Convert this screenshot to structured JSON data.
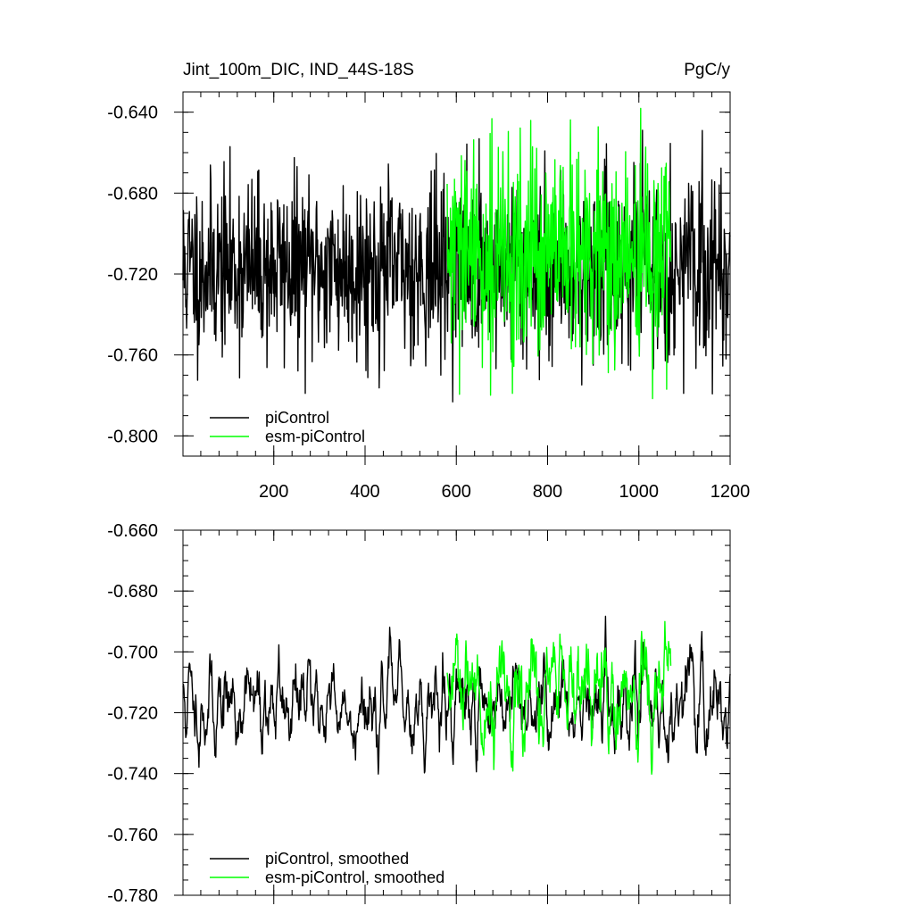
{
  "chart_data": [
    {
      "type": "line",
      "title_left": "Jint_100m_DIC, IND_44S-18S",
      "title_right": "PgC/y",
      "xlim": [
        1,
        1200
      ],
      "ylim": [
        -0.81,
        -0.63
      ],
      "x_ticks": [
        200,
        400,
        600,
        800,
        1000,
        1200
      ],
      "x_tick_labels": [
        "200",
        "400",
        "600",
        "800",
        "1000",
        "1200"
      ],
      "y_ticks": [
        -0.64,
        -0.68,
        -0.72,
        -0.76,
        -0.8
      ],
      "y_tick_labels": [
        "-0.640",
        "-0.680",
        "-0.720",
        "-0.760",
        "-0.800"
      ],
      "legend_position": "bottom-left",
      "series": [
        {
          "name": "piControl",
          "color": "#000000",
          "x_range": [
            1,
            1200
          ],
          "mean": -0.717,
          "noise": 0.022,
          "seed": 11
        },
        {
          "name": "esm-piControl",
          "color": "#00ff00",
          "x_range": [
            580,
            1070
          ],
          "mean": -0.712,
          "noise": 0.026,
          "seed": 29
        }
      ]
    },
    {
      "type": "line",
      "xlim": [
        1,
        1200
      ],
      "ylim": [
        -0.78,
        -0.66
      ],
      "x_ticks": [
        200,
        400,
        600,
        800,
        1000,
        1200
      ],
      "y_ticks": [
        -0.66,
        -0.68,
        -0.7,
        -0.72,
        -0.74,
        -0.76,
        -0.78
      ],
      "y_tick_labels": [
        "-0.660",
        "-0.680",
        "-0.700",
        "-0.720",
        "-0.740",
        "-0.760",
        "-0.780"
      ],
      "legend_position": "bottom-left",
      "series": [
        {
          "name": "piControl, smoothed",
          "color": "#000000",
          "x_range": [
            1,
            1200
          ],
          "mean": -0.717,
          "noise": 0.011,
          "seed": 11
        },
        {
          "name": "esm-piControl, smoothed",
          "color": "#00ff00",
          "x_range": [
            580,
            1070
          ],
          "mean": -0.715,
          "noise": 0.014,
          "seed": 29
        }
      ]
    }
  ]
}
